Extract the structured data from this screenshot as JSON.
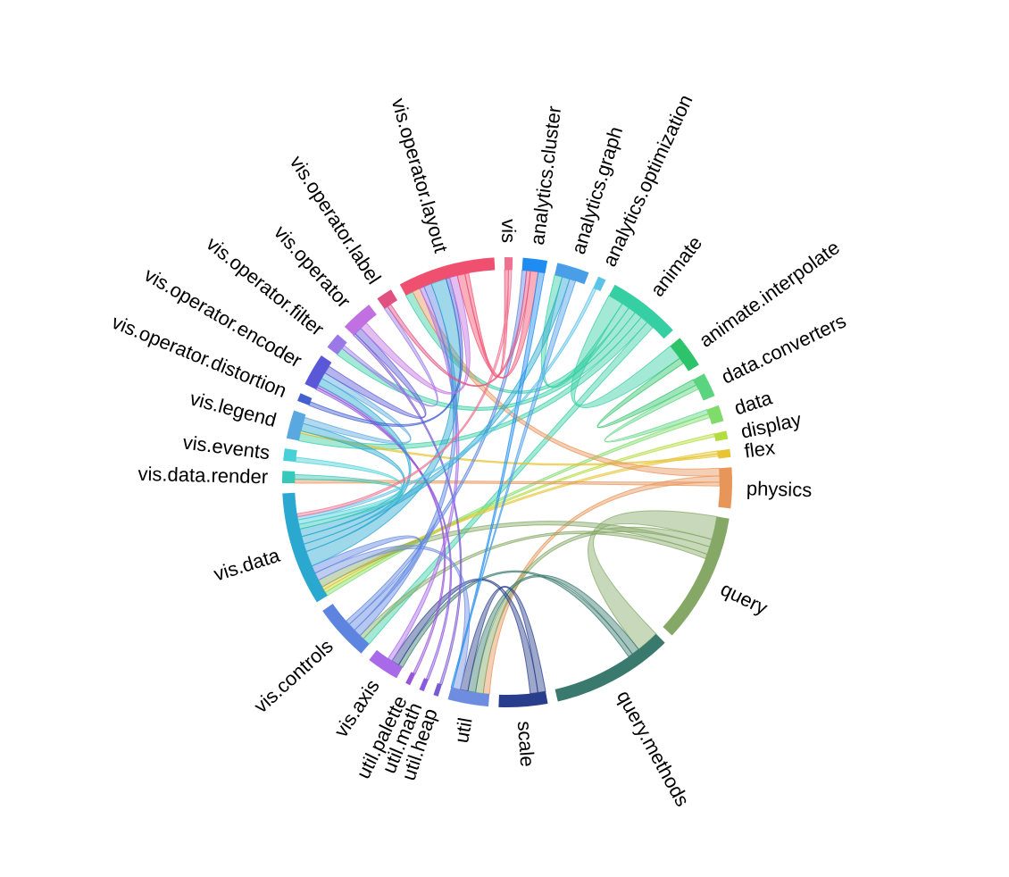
{
  "diagram": {
    "type": "chord",
    "groups": [
      {
        "label": "analytics.cluster",
        "color": "#1e8cf0",
        "value": 3
      },
      {
        "label": "analytics.graph",
        "color": "#4a9ee8",
        "value": 4
      },
      {
        "label": "analytics.optimization",
        "color": "#5bc2e8",
        "value": 1
      },
      {
        "label": "animate",
        "color": "#35cfa3",
        "value": 9
      },
      {
        "label": "animate.interpolate",
        "color": "#2cc36a",
        "value": 4
      },
      {
        "label": "data.converters",
        "color": "#5bd480",
        "value": 3
      },
      {
        "label": "data",
        "color": "#7fdc6a",
        "value": 2
      },
      {
        "label": "display",
        "color": "#b3dc3e",
        "value": 1
      },
      {
        "label": "flex",
        "color": "#e6c434",
        "value": 1
      },
      {
        "label": "physics",
        "color": "#e8955a",
        "value": 5
      },
      {
        "label": "query",
        "color": "#86a866",
        "value": 16
      },
      {
        "label": "query.methods",
        "color": "#3a7a6e",
        "value": 15
      },
      {
        "label": "scale",
        "color": "#283e8c",
        "value": 6
      },
      {
        "label": "util",
        "color": "#6f8de0",
        "value": 5
      },
      {
        "label": "util.heap",
        "color": "#7a5ad0",
        "value": 0.6
      },
      {
        "label": "util.math",
        "color": "#8a5ae0",
        "value": 0.6
      },
      {
        "label": "util.palette",
        "color": "#9955d8",
        "value": 0.6
      },
      {
        "label": "vis.axis",
        "color": "#a86ae8",
        "value": 4
      },
      {
        "label": "vis.controls",
        "color": "#5d85e0",
        "value": 7
      },
      {
        "label": "vis.data",
        "color": "#2aa8d0",
        "value": 14
      },
      {
        "label": "vis.data.render",
        "color": "#36c8b8",
        "value": 1.5
      },
      {
        "label": "vis.events",
        "color": "#48d0d8",
        "value": 1.5
      },
      {
        "label": "vis.legend",
        "color": "#5aa8e0",
        "value": 3.5
      },
      {
        "label": "vis.operator.distortion",
        "color": "#4460d0",
        "value": 1
      },
      {
        "label": "vis.operator.encoder",
        "color": "#5a58d8",
        "value": 4
      },
      {
        "label": "vis.operator.filter",
        "color": "#9a78e8",
        "value": 2
      },
      {
        "label": "vis.operator",
        "color": "#c070e0",
        "value": 4
      },
      {
        "label": "vis.operator.label",
        "color": "#e05080",
        "value": 2
      },
      {
        "label": "vis.operator.layout",
        "color": "#f05070",
        "value": 12
      },
      {
        "label": "vis",
        "color": "#f07090",
        "value": 1
      }
    ],
    "links": [
      {
        "source": "animate",
        "target": "animate.interpolate",
        "value": 2
      },
      {
        "source": "animate",
        "target": "analytics.graph",
        "value": 1
      },
      {
        "source": "animate",
        "target": "vis.operator.layout",
        "value": 1
      },
      {
        "source": "animate",
        "target": "vis.operator.filter",
        "value": 1
      },
      {
        "source": "animate",
        "target": "vis.legend",
        "value": 1
      },
      {
        "source": "animate",
        "target": "vis.controls",
        "value": 1
      },
      {
        "source": "animate.interpolate",
        "target": "data.converters",
        "value": 0.8
      },
      {
        "source": "data.converters",
        "target": "data",
        "value": 0.6
      },
      {
        "source": "data",
        "target": "vis.data",
        "value": 0.5
      },
      {
        "source": "display",
        "target": "vis.data",
        "value": 0.4
      },
      {
        "source": "flex",
        "target": "vis.data",
        "value": 0.4
      },
      {
        "source": "flex",
        "target": "vis.legend",
        "value": 0.3
      },
      {
        "source": "physics",
        "target": "vis.operator.layout",
        "value": 1
      },
      {
        "source": "physics",
        "target": "util",
        "value": 0.8
      },
      {
        "source": "physics",
        "target": "vis.data.render",
        "value": 0.5
      },
      {
        "source": "query",
        "target": "query.methods",
        "value": 3
      },
      {
        "source": "query",
        "target": "util",
        "value": 1
      },
      {
        "source": "query",
        "target": "vis.data",
        "value": 1
      },
      {
        "source": "query",
        "target": "vis.controls",
        "value": 0.6
      },
      {
        "source": "query.methods",
        "target": "util",
        "value": 1
      },
      {
        "source": "query.methods",
        "target": "vis.axis",
        "value": 0.6
      },
      {
        "source": "scale",
        "target": "util",
        "value": 1
      },
      {
        "source": "scale",
        "target": "vis.axis",
        "value": 1
      },
      {
        "source": "util",
        "target": "vis.data",
        "value": 1
      },
      {
        "source": "util.heap",
        "target": "vis.operator",
        "value": 0.3
      },
      {
        "source": "util.math",
        "target": "vis.operator.encoder",
        "value": 0.3
      },
      {
        "source": "util.palette",
        "target": "vis.operator.encoder",
        "value": 0.3
      },
      {
        "source": "vis.axis",
        "target": "vis.operator.layout",
        "value": 0.6
      },
      {
        "source": "vis.controls",
        "target": "vis.operator.layout",
        "value": 1
      },
      {
        "source": "vis.controls",
        "target": "vis.data",
        "value": 1
      },
      {
        "source": "vis.controls",
        "target": "analytics.cluster",
        "value": 0.6
      },
      {
        "source": "vis.data",
        "target": "vis.operator.layout",
        "value": 2
      },
      {
        "source": "vis.data",
        "target": "vis.operator.encoder",
        "value": 1
      },
      {
        "source": "vis.data",
        "target": "analytics.graph",
        "value": 1
      },
      {
        "source": "vis.data",
        "target": "vis.legend",
        "value": 1
      },
      {
        "source": "vis.data.render",
        "target": "vis.data",
        "value": 0.6
      },
      {
        "source": "vis.events",
        "target": "vis.data",
        "value": 0.6
      },
      {
        "source": "vis.legend",
        "target": "vis.operator.encoder",
        "value": 0.8
      },
      {
        "source": "vis.operator.distortion",
        "target": "vis.operator.layout",
        "value": 0.5
      },
      {
        "source": "vis.operator.encoder",
        "target": "vis.operator",
        "value": 1
      },
      {
        "source": "vis.operator.filter",
        "target": "vis.operator.label",
        "value": 0.5
      },
      {
        "source": "vis.operator",
        "target": "vis.operator.layout",
        "value": 1
      },
      {
        "source": "vis.operator.label",
        "target": "analytics.cluster",
        "value": 0.5
      },
      {
        "source": "vis.operator.layout",
        "target": "analytics.cluster",
        "value": 1
      },
      {
        "source": "vis.operator.layout",
        "target": "vis",
        "value": 0.5
      },
      {
        "source": "analytics.cluster",
        "target": "util",
        "value": 0.8
      },
      {
        "source": "analytics.graph",
        "target": "util",
        "value": 0.8
      },
      {
        "source": "analytics.optimization",
        "target": "vis.data",
        "value": 0.4
      },
      {
        "source": "vis",
        "target": "vis.data",
        "value": 0.4
      }
    ]
  }
}
